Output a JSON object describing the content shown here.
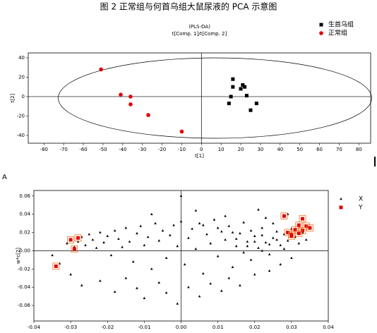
{
  "caption": "图 2 正常组与何首乌组大鼠尿液的 PCA 示意图",
  "panel_label": "A",
  "chart_data": [
    {
      "type": "scatter",
      "title": "(PLS-DA)",
      "subtitle": "t[Comp. 1]/t[Comp. 2]",
      "x_label": "t[1]",
      "y_label": "t[2]",
      "xlim": [
        -88,
        86
      ],
      "ylim": [
        -48,
        45
      ],
      "xticks": [
        -80,
        -70,
        -60,
        -50,
        -40,
        -30,
        -20,
        -10,
        0,
        10,
        20,
        30,
        40,
        50,
        60,
        70,
        80
      ],
      "yticks": [
        -40,
        -20,
        0,
        20,
        40
      ],
      "series": [
        {
          "name": "生首乌组",
          "color": "#000000",
          "marker": "square",
          "x": [
            14,
            15,
            16,
            16,
            20,
            21,
            22,
            23,
            25,
            28
          ],
          "values": [
            -7,
            0,
            10,
            18,
            8,
            12,
            10,
            1,
            -14,
            -7
          ]
        },
        {
          "name": "正常组",
          "color": "#e00000",
          "marker": "circle",
          "x": [
            -51,
            -41,
            -36,
            -36,
            -27,
            -10
          ],
          "values": [
            28,
            2,
            0,
            -8,
            -19,
            -36
          ]
        }
      ]
    },
    {
      "type": "scatter",
      "x_label": "w*c[1]",
      "y_label": "w*c[2]",
      "xlim": [
        -0.04,
        0.04
      ],
      "ylim": [
        -0.077,
        0.066
      ],
      "xticks": [
        -0.04,
        -0.03,
        -0.02,
        -0.01,
        {
          "value": 0,
          "label": "0.00"
        },
        0.01,
        0.02,
        0.03,
        0.04
      ],
      "yticks": [
        -0.06,
        -0.04,
        -0.02,
        {
          "value": 0,
          "label": "0.00"
        },
        0.02,
        0.04,
        0.06
      ],
      "series": [
        {
          "name": "X",
          "color": "#000000",
          "marker": "triangle",
          "x": [
            -0.031,
            -0.03,
            -0.029,
            -0.028,
            -0.027,
            -0.026,
            -0.025,
            -0.024,
            -0.023,
            -0.022,
            -0.021,
            -0.02,
            -0.019,
            -0.018,
            -0.017,
            -0.016,
            -0.015,
            -0.014,
            -0.013,
            -0.012,
            -0.011,
            -0.01,
            -0.009,
            -0.008,
            -0.007,
            -0.006,
            -0.005,
            -0.004,
            -0.003,
            -0.002,
            -0.001,
            0.0,
            0.001,
            0.002,
            0.003,
            0.004,
            0.005,
            0.006,
            0.007,
            0.008,
            0.009,
            0.01,
            0.011,
            0.012,
            0.013,
            0.014,
            0.015,
            0.016,
            0.017,
            0.018,
            0.019,
            0.02,
            0.021,
            0.022,
            0.023,
            0.024,
            0.025,
            0.026,
            0.027,
            0.028,
            0.029,
            0.03,
            0.031,
            0.032,
            0.033,
            0.034,
            -0.033,
            -0.035,
            -0.03,
            -0.027,
            -0.022,
            -0.018,
            -0.015,
            -0.012,
            -0.01,
            -0.006,
            -0.004,
            -0.001,
            0.002,
            0.005,
            0.008,
            0.011,
            0.013,
            0.016,
            0.02,
            0.024,
            0.027,
            0.03,
            0.018,
            0.02,
            0.022,
            0.024,
            0.026,
            0.028,
            0.014,
            0.01,
            0.006,
            0.025,
            0.023,
            0.029,
            0.021,
            0.0,
            -0.008,
            0.004,
            0.012,
            0.017,
            0.019,
            0.015,
            0.022
          ],
          "values": [
            0.008,
            0.012,
            0.004,
            0.01,
            0.015,
            0.006,
            0.018,
            0.012,
            0.003,
            0.02,
            0.009,
            0.016,
            -0.005,
            0.022,
            0.013,
            0.004,
            0.025,
            0.01,
            -0.012,
            0.019,
            0.027,
            0.006,
            0.015,
            -0.02,
            0.03,
            0.011,
            0.022,
            -0.008,
            0.017,
            0.028,
            0.005,
            0.032,
            -0.015,
            0.014,
            0.024,
            0.002,
            0.03,
            -0.025,
            0.018,
            0.008,
            0.034,
            -0.006,
            0.021,
            0.012,
            0.027,
            -0.018,
            0.005,
            0.019,
            0.031,
            0.01,
            -0.01,
            0.016,
            0.003,
            0.025,
            0.009,
            -0.004,
            0.014,
            0.021,
            0.006,
            0.018,
            0.011,
            0.024,
            0.015,
            0.008,
            0.02,
            0.012,
            -0.014,
            -0.005,
            -0.026,
            -0.038,
            -0.033,
            -0.045,
            -0.03,
            -0.041,
            -0.052,
            -0.035,
            -0.046,
            -0.058,
            -0.04,
            -0.05,
            -0.036,
            -0.044,
            -0.03,
            -0.038,
            -0.026,
            -0.022,
            -0.015,
            -0.008,
            0.005,
            0.01,
            0.0,
            0.007,
            0.012,
            0.002,
            0.02,
            0.025,
            0.028,
            0.03,
            0.036,
            0.04,
            0.045,
            0.06,
            0.04,
            0.044,
            0.038,
            -0.002,
            0.022,
            0.013,
            0.017
          ]
        },
        {
          "name": "Y",
          "color": "#e00000",
          "marker": "square",
          "x": [
            -0.03,
            -0.029,
            -0.028,
            -0.034,
            0.028,
            0.029,
            0.03,
            0.031,
            0.032,
            0.033,
            0.034,
            0.035,
            0.033,
            0.03,
            0.032
          ],
          "values": [
            0.012,
            0.002,
            0.014,
            -0.017,
            0.038,
            0.02,
            0.018,
            0.023,
            0.028,
            0.035,
            0.027,
            0.025,
            0.022,
            0.016,
            0.019
          ]
        }
      ]
    }
  ]
}
